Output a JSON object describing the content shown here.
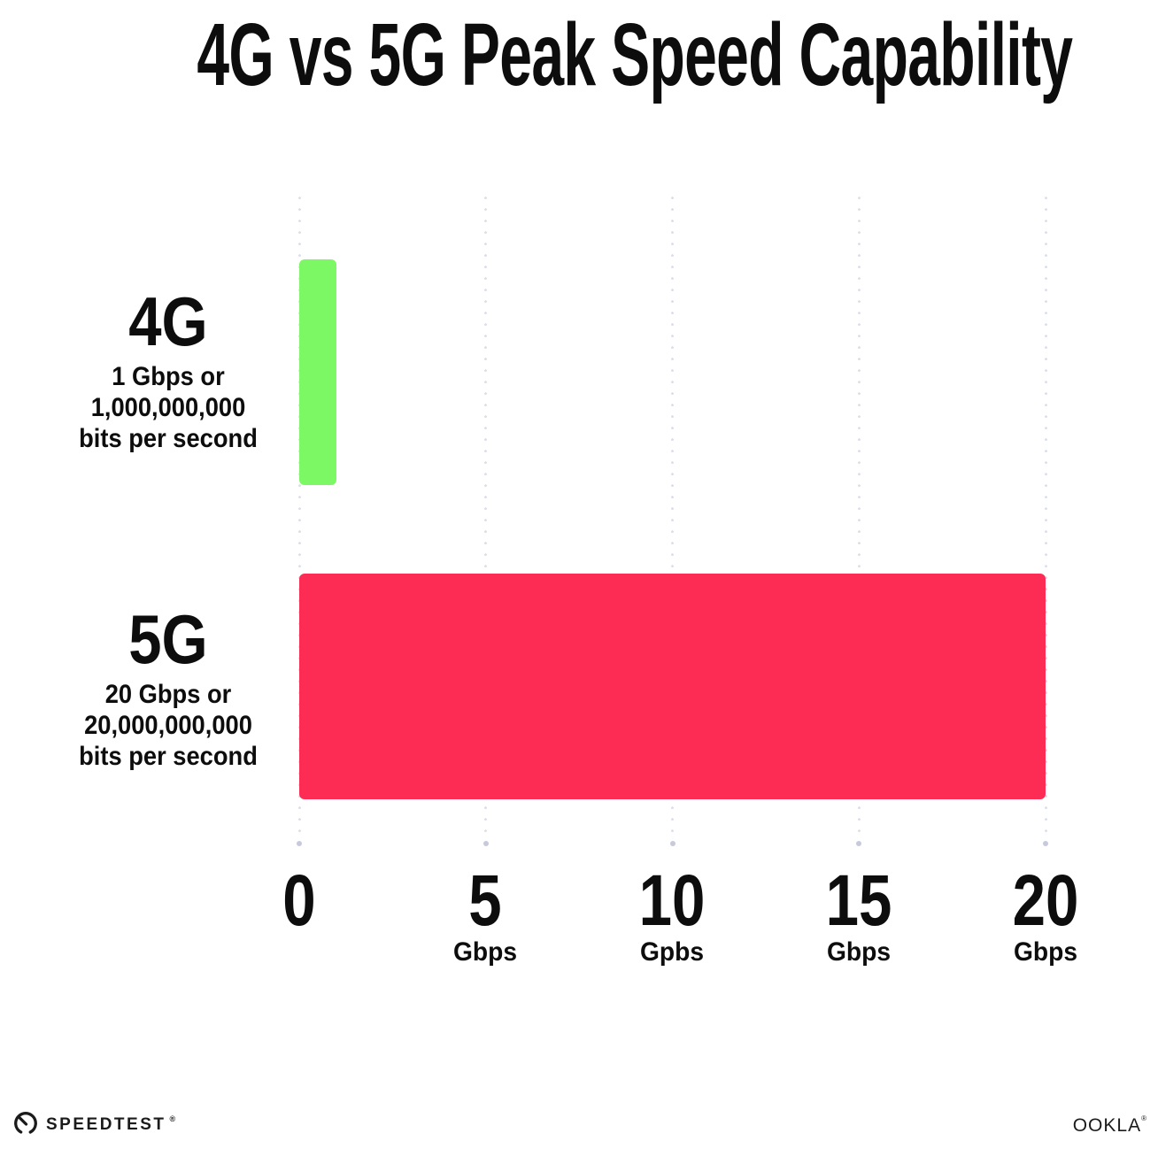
{
  "title": "4G vs 5G Peak Speed Capability",
  "chart_data": {
    "type": "bar",
    "orientation": "horizontal",
    "title": "4G vs 5G Peak Speed Capability",
    "categories": [
      "4G",
      "5G"
    ],
    "values": [
      1,
      20
    ],
    "value_unit": "Gbps",
    "xlabel": "",
    "ylabel": "",
    "xlim": [
      0,
      20
    ],
    "grid": "dotted-vertical-gridlines",
    "legend": "none",
    "bars": [
      {
        "label": "4G",
        "value": 1,
        "color": "#7BF863",
        "sub_lines": [
          "1 Gbps or",
          "1,000,000,000",
          "bits per second"
        ]
      },
      {
        "label": "5G",
        "value": 20,
        "color": "#FD2C55",
        "sub_lines": [
          "20 Gbps or",
          "20,000,000,000",
          "bits per second"
        ]
      }
    ],
    "x_ticks": [
      {
        "label": "0",
        "unit": ""
      },
      {
        "label": "5",
        "unit": "Gbps"
      },
      {
        "label": "10",
        "unit": "Gpbs"
      },
      {
        "label": "15",
        "unit": "Gbps"
      },
      {
        "label": "20",
        "unit": "Gbps"
      }
    ]
  },
  "footer": {
    "speedtest_wordmark": "SPEEDTEST",
    "speedtest_reg_mark": "®",
    "ookla_wordmark": "OOKLA",
    "ookla_trade_mark": "®"
  },
  "colors": {
    "background": "#FFFFFF",
    "text": "#0D0D0D",
    "bar_4g": "#7BF863",
    "bar_5g": "#FD2C55",
    "gridline_dot": "#DCDEE9",
    "axis_end_dot": "#C7CADA",
    "logo_ink": "#1B1B1B"
  }
}
